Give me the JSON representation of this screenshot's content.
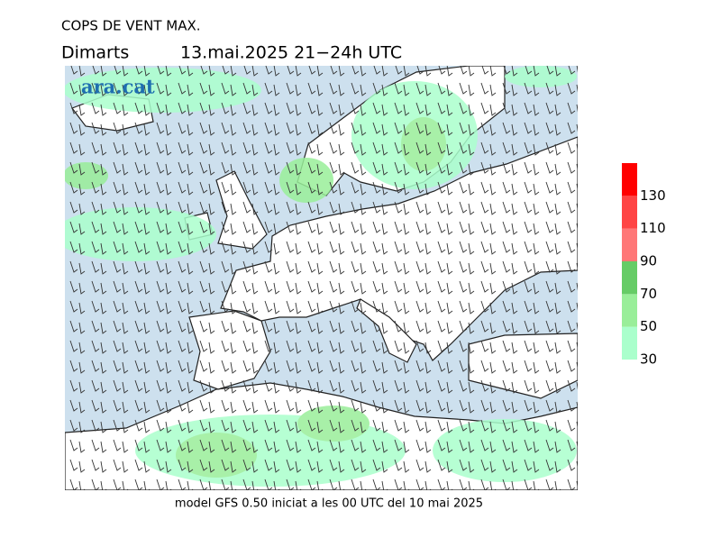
{
  "header": {
    "title": "COPS DE VENT MAX.",
    "day": "Dimarts",
    "period": "13.mai.2025 21−24h UTC"
  },
  "logo": "ara.cat",
  "legend": {
    "lim": [
      30,
      150
    ],
    "ticks": [
      30,
      50,
      70,
      90,
      110,
      130
    ],
    "colors": [
      "#aaffcc",
      "#99ee99",
      "#66cc66",
      "#ff7777",
      "#ff4444",
      "#ff0000"
    ]
  },
  "footer": "model GFS 0.50 iniciat a les 00 UTC del 10 mai 2025"
}
